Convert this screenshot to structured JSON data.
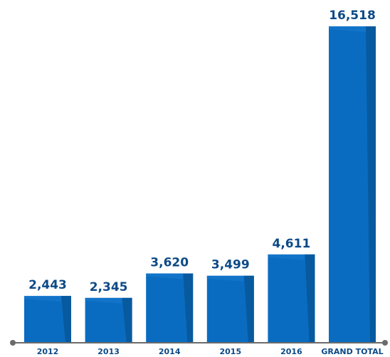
{
  "chart_data": {
    "type": "bar",
    "categories": [
      "2012",
      "2013",
      "2014",
      "2015",
      "2016",
      "GRAND TOTAL"
    ],
    "values": [
      2443,
      2345,
      3620,
      3499,
      4611,
      16518
    ],
    "value_labels": [
      "2,443",
      "2,345",
      "3,620",
      "3,499",
      "4,611",
      "16,518"
    ],
    "title": "",
    "xlabel": "",
    "ylabel": "",
    "ylim": [
      0,
      16518
    ],
    "grid": false,
    "legend": "none",
    "colors": {
      "bar": "#0a6cc1",
      "bar_shade": "#085a9f",
      "text": "#0d4a86",
      "axis": "#6b6b6b"
    }
  }
}
